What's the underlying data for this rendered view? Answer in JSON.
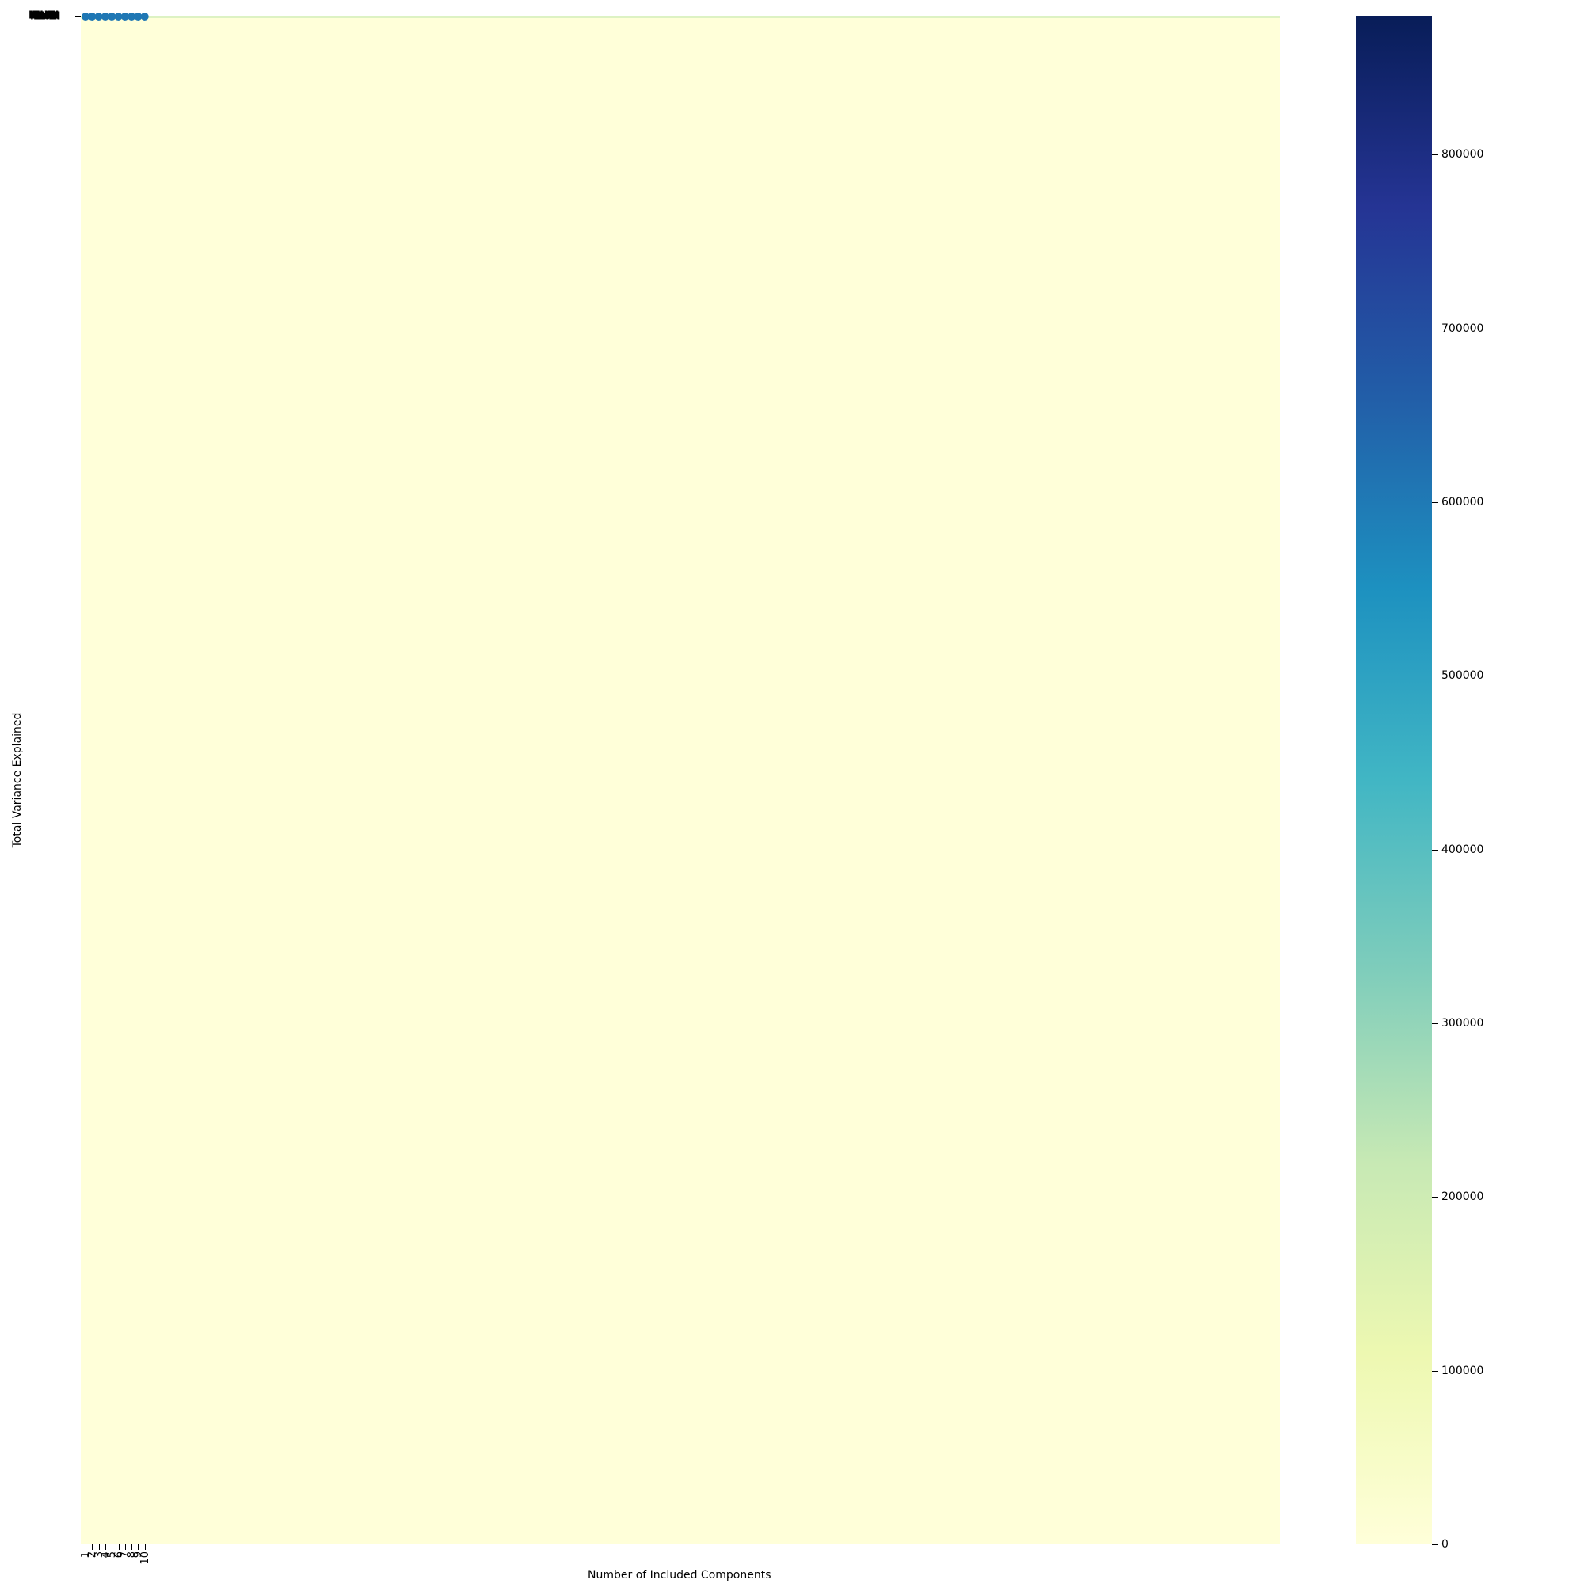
{
  "chart_data": {
    "type": "heatmap",
    "title": "",
    "xlabel": "Number of Included Components",
    "ylabel": "Total Variance Explained",
    "x_ticks": [
      "1",
      "2",
      "3",
      "4",
      "5",
      "6",
      "7",
      "8",
      "9",
      "10"
    ],
    "y_tick_text": "NaN",
    "colormap": "YlGnBu",
    "colormap_colors": [
      "#ffffd9",
      "#edf8b1",
      "#c7e9b4",
      "#7fcdbb",
      "#41b6c4",
      "#1d91c0",
      "#225ea8",
      "#253494",
      "#081d58"
    ],
    "heatmap_values": "all cells approximately 0 (lightest color), with faint higher values only in the top row",
    "colorbar": {
      "min": 0,
      "max": 880000,
      "ticks": [
        0,
        100000,
        200000,
        300000,
        400000,
        500000,
        600000,
        700000,
        800000
      ]
    },
    "line_overlay": {
      "color": "#1f77b4",
      "marker": "circle",
      "x": [
        1,
        2,
        3,
        4,
        5,
        6,
        7,
        8,
        9,
        10
      ]
    }
  }
}
